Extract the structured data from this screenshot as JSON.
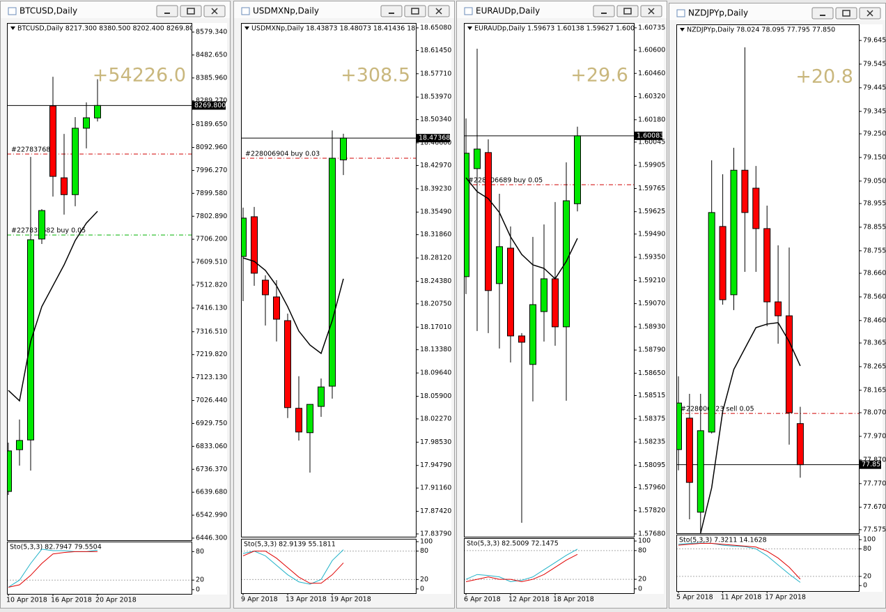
{
  "windows": [
    {
      "title": "BTCUSD,Daily",
      "header": "BTCUSD,Daily  8217.300 8380.500 8202.400 8269.800",
      "profit": "+54226.0",
      "price": {
        "value": 8269.8,
        "label": "8269.800"
      },
      "ylim": [
        6437.5,
        8617.5
      ],
      "yticks": [
        {
          "value": 8579.34,
          "label": "8579.340"
        },
        {
          "value": 8482.65,
          "label": "8482.650"
        },
        {
          "value": 8385.96,
          "label": "8385.960"
        },
        {
          "value": 8289.27,
          "label": "8289.270"
        },
        {
          "value": 8189.65,
          "label": "8189.650"
        },
        {
          "value": 8092.96,
          "label": "8092.960"
        },
        {
          "value": 7996.27,
          "label": "7996.270"
        },
        {
          "value": 7899.58,
          "label": "7899.580"
        },
        {
          "value": 7802.89,
          "label": "7802.890"
        },
        {
          "value": 7706.2,
          "label": "7706.200"
        },
        {
          "value": 7609.51,
          "label": "7609.510"
        },
        {
          "value": 7512.82,
          "label": "7512.820"
        },
        {
          "value": 7416.13,
          "label": "7416.130"
        },
        {
          "value": 7316.51,
          "label": "7316.510"
        },
        {
          "value": 7219.82,
          "label": "7219.820"
        },
        {
          "value": 7123.13,
          "label": "7123.130"
        },
        {
          "value": 7026.44,
          "label": "7026.440"
        },
        {
          "value": 6929.75,
          "label": "6929.750"
        },
        {
          "value": 6833.06,
          "label": "6833.060"
        },
        {
          "value": 6736.37,
          "label": "6736.370"
        },
        {
          "value": 6639.68,
          "label": "6639.680"
        },
        {
          "value": 6542.99,
          "label": "6542.990"
        },
        {
          "value": 6446.3,
          "label": "6446.300"
        }
      ],
      "candles": {
        "open": [
          6643,
          6819,
          6860,
          7707,
          8268,
          7965,
          7894,
          8174,
          8217.3
        ],
        "high": [
          6849,
          6946,
          8053,
          7833,
          8391,
          8150,
          8221,
          8283,
          8380.5
        ],
        "low": [
          6628,
          6752,
          6731,
          7686,
          7886,
          7810,
          7845,
          8089,
          8202.4
        ],
        "close": [
          6814,
          6858,
          7704,
          7827,
          7971,
          7894,
          8174,
          8218,
          8269.8
        ]
      },
      "ma": [
        7069,
        7025,
        7275,
        7422,
        7510,
        7598,
        7701,
        7774,
        7824
      ],
      "orders": [
        {
          "label": "#227837682",
          "price": 8065,
          "color": "#d00000"
        },
        {
          "label": "#227837682 buy 0.05",
          "price": 7724,
          "color": "#00b000"
        }
      ],
      "stoch": {
        "label": "Sto(5,3,3) 82.7947 79.5504",
        "ylim": [
          -9,
          101
        ],
        "yticks": [
          80,
          20,
          0
        ],
        "main": [
          5,
          20,
          55,
          85,
          82,
          82,
          80,
          80,
          83
        ],
        "signal": [
          5,
          10,
          30,
          55,
          75,
          78,
          80,
          80,
          80
        ]
      },
      "dates": [
        "10 Apr 2018",
        null,
        null,
        null,
        "16 Apr 2018",
        null,
        null,
        null,
        "20 Apr 2018"
      ]
    },
    {
      "title": "USDMXNp,Daily",
      "header": "USDMXNp,Daily  18.43873 18.48073 18.41436 18.47368",
      "profit": "+308.5",
      "price": {
        "value": 18.47368,
        "label": "18.47368"
      },
      "ylim": [
        17.8334,
        18.6586
      ],
      "yticks": [
        {
          "value": 18.6508,
          "label": "18.65080"
        },
        {
          "value": 18.6145,
          "label": "18.61450"
        },
        {
          "value": 18.5771,
          "label": "18.57710"
        },
        {
          "value": 18.5397,
          "label": "18.53970"
        },
        {
          "value": 18.5034,
          "label": "18.50340"
        },
        {
          "value": 18.466,
          "label": "18.46600"
        },
        {
          "value": 18.4297,
          "label": "18.42970"
        },
        {
          "value": 18.3923,
          "label": "18.39230"
        },
        {
          "value": 18.3549,
          "label": "18.35490"
        },
        {
          "value": 18.3186,
          "label": "18.31860"
        },
        {
          "value": 18.2812,
          "label": "18.28120"
        },
        {
          "value": 18.2438,
          "label": "18.24380"
        },
        {
          "value": 18.2075,
          "label": "18.20750"
        },
        {
          "value": 18.1701,
          "label": "18.17010"
        },
        {
          "value": 18.1338,
          "label": "18.13380"
        },
        {
          "value": 18.0964,
          "label": "18.09640"
        },
        {
          "value": 18.059,
          "label": "18.05900"
        },
        {
          "value": 18.0227,
          "label": "18.02270"
        },
        {
          "value": 17.9853,
          "label": "17.98530"
        },
        {
          "value": 17.9479,
          "label": "17.94790"
        },
        {
          "value": 17.9116,
          "label": "17.91160"
        },
        {
          "value": 17.8742,
          "label": "17.87420"
        },
        {
          "value": 17.8379,
          "label": "17.83790"
        }
      ],
      "candles": {
        "open": [
          18.2836,
          18.3474,
          18.2455,
          18.2186,
          18.1805,
          18.0397,
          18.0005,
          18.0427,
          18.0752,
          18.43873
        ],
        "high": [
          18.362,
          18.3631,
          18.2533,
          18.2455,
          18.1918,
          18.0912,
          18.0464,
          18.0875,
          18.486,
          18.48073
        ],
        "low": [
          18.2119,
          18.2365,
          18.1727,
          18.147,
          18.024,
          17.9879,
          17.9364,
          18.026,
          18.0553,
          18.41436
        ],
        "close": [
          18.3452,
          18.2567,
          18.222,
          18.1828,
          18.0408,
          18.0016,
          18.046,
          18.074,
          18.4414,
          18.47368
        ]
      },
      "ma": [
        18.2813,
        18.2757,
        18.2612,
        18.2366,
        18.203,
        18.1638,
        18.1414,
        18.1279,
        18.1806,
        18.2477
      ],
      "orders": [
        {
          "label": "#228006904 buy 0.03",
          "price": 18.4414,
          "color": "#d00000"
        }
      ],
      "stoch": {
        "label": "Sto(5,3,3) 82.9139 55.1811",
        "ylim": [
          -9,
          106
        ],
        "yticks": [
          100,
          80,
          20,
          0
        ],
        "main": [
          75,
          80,
          70,
          50,
          30,
          15,
          10,
          20,
          60,
          83
        ],
        "signal": [
          70,
          80,
          80,
          65,
          45,
          25,
          12,
          12,
          30,
          55
        ]
      },
      "dates": [
        "9 Apr 2018",
        null,
        null,
        null,
        "13 Apr 2018",
        null,
        null,
        null,
        "19 Apr 2018",
        null
      ]
    },
    {
      "title": "EURAUDp,Daily",
      "header": "EURAUDp,Daily  1.59673 1.60138 1.59627 1.60083",
      "profit": "+29.6",
      "price": {
        "value": 1.60083,
        "label": "1.60083"
      },
      "ylim": [
        1.57663,
        1.60764
      ],
      "yticks": [
        {
          "value": 1.60735,
          "label": "1.60735"
        },
        {
          "value": 1.606,
          "label": "1.60600"
        },
        {
          "value": 1.6046,
          "label": "1.60460"
        },
        {
          "value": 1.6032,
          "label": "1.60320"
        },
        {
          "value": 1.6018,
          "label": "1.60180"
        },
        1.60045,
        1.59905,
        1.59765,
        1.59625,
        {
          "value": 1.5949,
          "label": "1.59490"
        },
        {
          "value": 1.5935,
          "label": "1.59350"
        },
        {
          "value": 1.5921,
          "label": "1.59210"
        },
        {
          "value": 1.5907,
          "label": "1.59070"
        },
        {
          "value": 1.5893,
          "label": "1.58930"
        },
        {
          "value": 1.5879,
          "label": "1.58790"
        },
        {
          "value": 1.5865,
          "label": "1.58650"
        },
        1.58515,
        1.58375,
        1.58235,
        1.58095,
        {
          "value": 1.5796,
          "label": "1.57960"
        },
        {
          "value": 1.5782,
          "label": "1.57820"
        },
        {
          "value": 1.5768,
          "label": "1.57680"
        }
      ],
      "candles": {
        "open": [
          1.59233,
          1.59885,
          1.59982,
          1.59191,
          1.59405,
          1.58875,
          1.58703,
          1.59022,
          1.5922,
          1.5893,
          1.59673
        ],
        "high": [
          1.60188,
          1.60609,
          1.60062,
          1.59733,
          1.59536,
          1.58892,
          1.59473,
          1.59548,
          1.59683,
          1.59923,
          1.60138
        ],
        "low": [
          1.59128,
          1.58905,
          1.58892,
          1.58799,
          1.58715,
          1.57747,
          1.5848,
          1.58841,
          1.58816,
          1.58484,
          1.59627
        ],
        "close": [
          1.59978,
          1.60003,
          1.59149,
          1.59414,
          1.58875,
          1.58837,
          1.59064,
          1.5922,
          1.5893,
          1.59691,
          1.60083
        ]
      },
      "ma": [
        1.5983,
        1.59746,
        1.59704,
        1.5962,
        1.59473,
        1.59367,
        1.59304,
        1.59283,
        1.5922,
        1.59325,
        1.59464
      ],
      "orders": [
        {
          "label": "#228006689 buy 0.05",
          "price": 1.59788,
          "color": "#d00000"
        }
      ],
      "stoch": {
        "label": "Sto(5,3,3) 82.5009 72.1475",
        "ylim": [
          -9,
          106
        ],
        "yticks": [
          100,
          80,
          20,
          0
        ],
        "main": [
          20,
          30,
          28,
          25,
          15,
          18,
          25,
          40,
          55,
          70,
          83
        ],
        "signal": [
          15,
          20,
          25,
          20,
          20,
          15,
          20,
          30,
          45,
          60,
          72
        ]
      },
      "dates": [
        "6 Apr 2018",
        null,
        null,
        null,
        "12 Apr 2018",
        null,
        null,
        null,
        "18 Apr 2018",
        null,
        null
      ]
    },
    {
      "title": "NZDJPYp,Daily",
      "header": "NZDJPYp,Daily  78.024 78.095 77.795 77.850",
      "profit": "+20.8",
      "price": {
        "value": 77.85,
        "label": "77.850"
      },
      "ylim": [
        77.56,
        79.713
      ],
      "yticks": [
        79.645,
        79.545,
        79.445,
        79.345,
        {
          "value": 79.25,
          "label": "79.250"
        },
        {
          "value": 79.15,
          "label": "79.150"
        },
        {
          "value": 79.05,
          "label": "79.050"
        },
        78.955,
        78.855,
        78.755,
        {
          "value": 78.66,
          "label": "78.660"
        },
        {
          "value": 78.56,
          "label": "78.560"
        },
        {
          "value": 78.46,
          "label": "78.460"
        },
        78.365,
        78.265,
        78.165,
        {
          "value": 78.07,
          "label": "78.070"
        },
        {
          "value": 77.97,
          "label": "77.970"
        },
        {
          "value": 77.87,
          "label": "77.870"
        },
        {
          "value": 77.77,
          "label": "77.770"
        },
        {
          "value": 77.67,
          "label": "77.670"
        },
        77.575
      ],
      "candles": {
        "open": [
          77.914,
          78.047,
          77.649,
          77.988,
          78.858,
          78.569,
          79.096,
          79.02,
          78.849,
          78.539,
          78.48,
          78.024
        ],
        "high": [
          78.224,
          78.15,
          78.15,
          79.138,
          79.079,
          79.191,
          79.616,
          79.114,
          78.946,
          78.778,
          78.769,
          78.095
        ],
        "low": [
          77.826,
          77.619,
          77.56,
          77.982,
          78.527,
          78.504,
          78.666,
          78.666,
          78.436,
          78.362,
          77.935,
          77.795
        ],
        "close": [
          78.111,
          77.775,
          77.994,
          78.917,
          78.548,
          79.096,
          78.917,
          78.849,
          78.539,
          78.48,
          78.07,
          77.85
        ]
      },
      "ma": [
        null,
        null,
        77.56,
        77.752,
        78.076,
        78.253,
        78.342,
        78.43,
        78.445,
        78.451,
        78.371,
        78.268
      ],
      "orders": [
        {
          "label": "#228006523 sell 0.05",
          "price": 78.067,
          "color": "#d00000"
        }
      ],
      "stoch": {
        "label": "Sto(5,3,3) 7.3211 14.1628",
        "ylim": [
          -12,
          111
        ],
        "yticks": [
          100,
          80,
          20,
          0
        ],
        "main": [
          90,
          92,
          93,
          92,
          88,
          86,
          85,
          80,
          65,
          45,
          25,
          7
        ],
        "signal": [
          88,
          90,
          92,
          92,
          90,
          88,
          86,
          84,
          75,
          60,
          40,
          14
        ]
      },
      "dates": [
        "5 Apr 2018",
        null,
        null,
        null,
        "11 Apr 2018",
        null,
        null,
        null,
        "17 Apr 2018",
        null,
        null,
        null
      ]
    }
  ]
}
